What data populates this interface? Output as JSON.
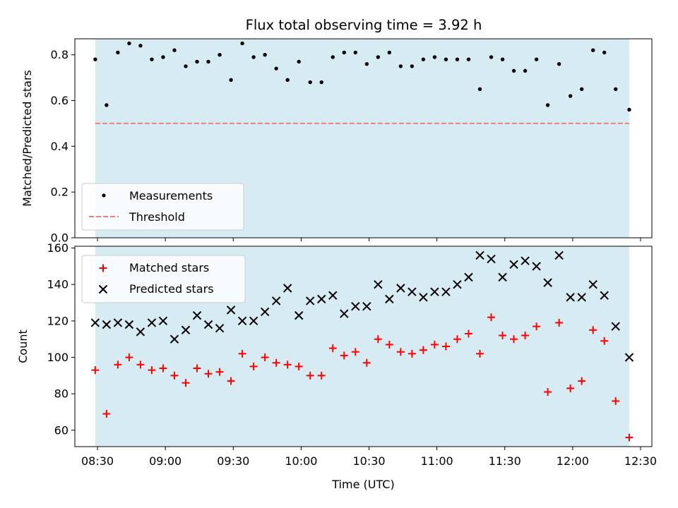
{
  "title": "Flux total observing time = 3.92 h",
  "colors": {
    "shade": "#add8e6",
    "shade_alpha": 0.5,
    "measurement": "#000000",
    "threshold": "#f08080",
    "matched": "#ff0000",
    "predicted": "#000000"
  },
  "chart_data": [
    {
      "type": "scatter",
      "ylabel": "Matched/Predicted stars",
      "ylim": [
        0,
        0.87
      ],
      "yticks": [
        0.0,
        0.2,
        0.4,
        0.6,
        0.8
      ],
      "ytick_labels": [
        "0.0",
        "0.2",
        "0.4",
        "0.6",
        "0.8"
      ],
      "shaded_span": [
        "08:29",
        "12:25"
      ],
      "threshold": 0.5,
      "legend": {
        "location": "lower-left",
        "entries": [
          "Measurements",
          "Threshold"
        ]
      },
      "series": [
        {
          "name": "Measurements",
          "marker": "dot",
          "x": [
            "08:29",
            "08:34",
            "08:39",
            "08:44",
            "08:49",
            "08:54",
            "08:59",
            "09:04",
            "09:09",
            "09:14",
            "09:19",
            "09:24",
            "09:29",
            "09:34",
            "09:39",
            "09:44",
            "09:49",
            "09:54",
            "09:59",
            "10:04",
            "10:09",
            "10:14",
            "10:19",
            "10:24",
            "10:29",
            "10:34",
            "10:39",
            "10:44",
            "10:49",
            "10:54",
            "10:59",
            "11:04",
            "11:09",
            "11:14",
            "11:19",
            "11:24",
            "11:29",
            "11:34",
            "11:39",
            "11:44",
            "11:49",
            "11:54",
            "11:59",
            "12:04",
            "12:09",
            "12:14",
            "12:19",
            "12:25"
          ],
          "y": [
            0.78,
            0.58,
            0.81,
            0.85,
            0.84,
            0.78,
            0.79,
            0.82,
            0.75,
            0.77,
            0.77,
            0.8,
            0.69,
            0.85,
            0.79,
            0.8,
            0.74,
            0.69,
            0.77,
            0.68,
            0.68,
            0.79,
            0.81,
            0.81,
            0.76,
            0.79,
            0.81,
            0.75,
            0.75,
            0.78,
            0.79,
            0.78,
            0.78,
            0.78,
            0.65,
            0.79,
            0.78,
            0.73,
            0.73,
            0.78,
            0.58,
            0.76,
            0.62,
            0.65,
            0.82,
            0.81,
            0.65,
            0.56
          ]
        },
        {
          "name": "Threshold",
          "style": "dashed",
          "x": [
            "08:29",
            "12:25"
          ],
          "y": [
            0.5,
            0.5
          ]
        }
      ]
    },
    {
      "type": "scatter",
      "xlabel": "Time (UTC)",
      "ylabel": "Count",
      "ylim": [
        51,
        161
      ],
      "yticks": [
        60,
        80,
        100,
        120,
        140,
        160
      ],
      "ytick_labels": [
        "60",
        "80",
        "100",
        "120",
        "140",
        "160"
      ],
      "xlim": [
        "08:20",
        "12:35"
      ],
      "xticks": [
        "08:30",
        "09:00",
        "09:30",
        "10:00",
        "10:30",
        "11:00",
        "11:30",
        "12:00",
        "12:30"
      ],
      "shaded_span": [
        "08:29",
        "12:25"
      ],
      "legend": {
        "location": "upper-left",
        "entries": [
          "Matched stars",
          "Predicted stars"
        ]
      },
      "series": [
        {
          "name": "Matched stars",
          "marker": "plus",
          "x": [
            "08:29",
            "08:34",
            "08:39",
            "08:44",
            "08:49",
            "08:54",
            "08:59",
            "09:04",
            "09:09",
            "09:14",
            "09:19",
            "09:24",
            "09:29",
            "09:34",
            "09:39",
            "09:44",
            "09:49",
            "09:54",
            "09:59",
            "10:04",
            "10:09",
            "10:14",
            "10:19",
            "10:24",
            "10:29",
            "10:34",
            "10:39",
            "10:44",
            "10:49",
            "10:54",
            "10:59",
            "11:04",
            "11:09",
            "11:14",
            "11:19",
            "11:24",
            "11:29",
            "11:34",
            "11:39",
            "11:44",
            "11:49",
            "11:54",
            "11:59",
            "12:04",
            "12:09",
            "12:14",
            "12:19",
            "12:25"
          ],
          "y": [
            93,
            69,
            96,
            100,
            96,
            93,
            94,
            90,
            86,
            94,
            91,
            92,
            87,
            102,
            95,
            100,
            97,
            96,
            95,
            90,
            90,
            105,
            101,
            103,
            97,
            110,
            107,
            103,
            102,
            104,
            107,
            106,
            110,
            113,
            102,
            122,
            112,
            110,
            112,
            117,
            81,
            119,
            83,
            87,
            115,
            109,
            76,
            56
          ]
        },
        {
          "name": "Predicted stars",
          "marker": "x",
          "x": [
            "08:29",
            "08:34",
            "08:39",
            "08:44",
            "08:49",
            "08:54",
            "08:59",
            "09:04",
            "09:09",
            "09:14",
            "09:19",
            "09:24",
            "09:29",
            "09:34",
            "09:39",
            "09:44",
            "09:49",
            "09:54",
            "09:59",
            "10:04",
            "10:09",
            "10:14",
            "10:19",
            "10:24",
            "10:29",
            "10:34",
            "10:39",
            "10:44",
            "10:49",
            "10:54",
            "10:59",
            "11:04",
            "11:09",
            "11:14",
            "11:19",
            "11:24",
            "11:29",
            "11:34",
            "11:39",
            "11:44",
            "11:49",
            "11:54",
            "11:59",
            "12:04",
            "12:09",
            "12:14",
            "12:19",
            "12:25"
          ],
          "y": [
            119,
            118,
            119,
            118,
            114,
            119,
            120,
            110,
            115,
            123,
            118,
            116,
            126,
            120,
            120,
            125,
            131,
            138,
            123,
            131,
            132,
            134,
            124,
            128,
            128,
            140,
            132,
            138,
            136,
            133,
            136,
            136,
            140,
            144,
            156,
            154,
            144,
            151,
            153,
            150,
            141,
            156,
            133,
            133,
            140,
            134,
            117,
            100
          ]
        }
      ]
    }
  ]
}
